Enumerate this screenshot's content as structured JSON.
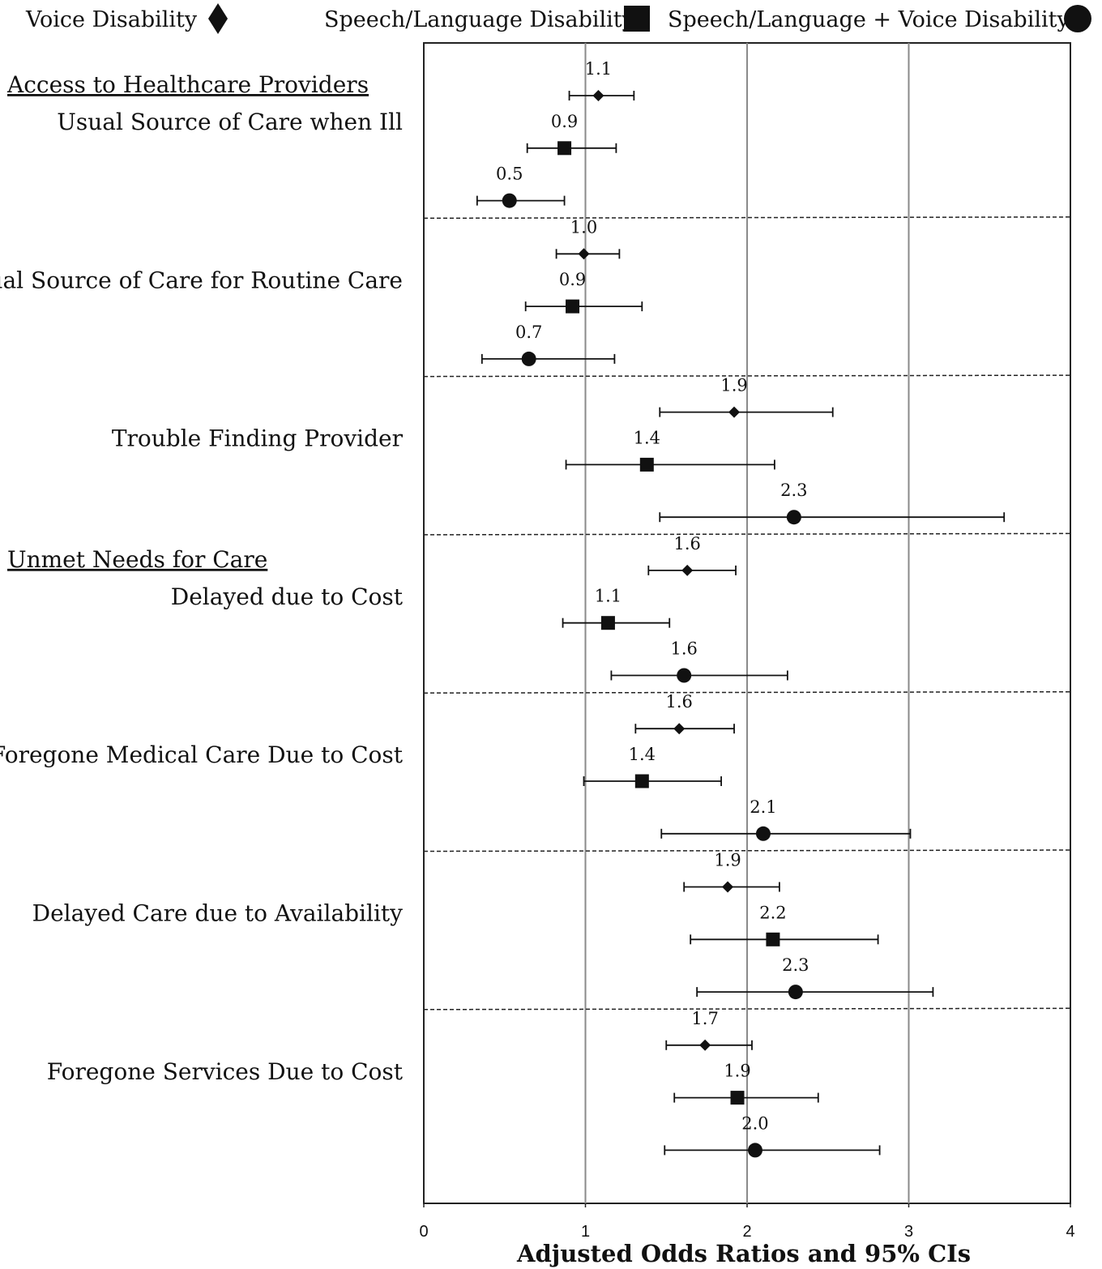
{
  "chart_data": {
    "type": "forest",
    "xlabel": "Adjusted Odds Ratios and 95% CIs",
    "xlim": [
      0,
      4
    ],
    "xticks": [
      "0",
      "1",
      "2",
      "3",
      "4"
    ],
    "gridlines": "vertical",
    "legend_position": "top",
    "series": [
      {
        "name": "Voice Disability",
        "marker": "diamond"
      },
      {
        "name": "Speech/Language Disability",
        "marker": "square"
      },
      {
        "name": "Speech/Language + Voice Disability",
        "marker": "circle"
      }
    ],
    "groups": [
      {
        "label": "Access to Healthcare Providers",
        "first_row": 0
      },
      {
        "label": "Unmet Needs for Care",
        "first_row": 3
      }
    ],
    "rows": [
      {
        "label": "Usual Source of Care when Ill",
        "estimates": [
          {
            "or": 1.08,
            "low": 0.9,
            "high": 1.3,
            "text": "1.1"
          },
          {
            "or": 0.87,
            "low": 0.64,
            "high": 1.19,
            "text": "0.9"
          },
          {
            "or": 0.53,
            "low": 0.33,
            "high": 0.87,
            "text": "0.5"
          }
        ]
      },
      {
        "label": "Usual Source of Care for Routine Care",
        "estimates": [
          {
            "or": 0.99,
            "low": 0.82,
            "high": 1.21,
            "text": "1.0"
          },
          {
            "or": 0.92,
            "low": 0.63,
            "high": 1.35,
            "text": "0.9"
          },
          {
            "or": 0.65,
            "low": 0.36,
            "high": 1.18,
            "text": "0.7"
          }
        ]
      },
      {
        "label": "Trouble Finding Provider",
        "estimates": [
          {
            "or": 1.92,
            "low": 1.46,
            "high": 2.53,
            "text": "1.9"
          },
          {
            "or": 1.38,
            "low": 0.88,
            "high": 2.17,
            "text": "1.4"
          },
          {
            "or": 2.29,
            "low": 1.46,
            "high": 3.59,
            "text": "2.3"
          }
        ]
      },
      {
        "label": "Delayed due to Cost",
        "estimates": [
          {
            "or": 1.63,
            "low": 1.39,
            "high": 1.93,
            "text": "1.6"
          },
          {
            "or": 1.14,
            "low": 0.86,
            "high": 1.52,
            "text": "1.1"
          },
          {
            "or": 1.61,
            "low": 1.16,
            "high": 2.25,
            "text": "1.6"
          }
        ]
      },
      {
        "label": "Foregone Medical Care Due to Cost",
        "estimates": [
          {
            "or": 1.58,
            "low": 1.31,
            "high": 1.92,
            "text": "1.6"
          },
          {
            "or": 1.35,
            "low": 0.99,
            "high": 1.84,
            "text": "1.4"
          },
          {
            "or": 2.1,
            "low": 1.47,
            "high": 3.01,
            "text": "2.1"
          }
        ]
      },
      {
        "label": "Delayed Care due to Availability",
        "estimates": [
          {
            "or": 1.88,
            "low": 1.61,
            "high": 2.2,
            "text": "1.9"
          },
          {
            "or": 2.16,
            "low": 1.65,
            "high": 2.81,
            "text": "2.2"
          },
          {
            "or": 2.3,
            "low": 1.69,
            "high": 3.15,
            "text": "2.3"
          }
        ]
      },
      {
        "label": "Foregone Services Due to Cost",
        "estimates": [
          {
            "or": 1.74,
            "low": 1.5,
            "high": 2.03,
            "text": "1.7"
          },
          {
            "or": 1.94,
            "low": 1.55,
            "high": 2.44,
            "text": "1.9"
          },
          {
            "or": 2.05,
            "low": 1.49,
            "high": 2.82,
            "text": "2.0"
          }
        ]
      }
    ]
  }
}
